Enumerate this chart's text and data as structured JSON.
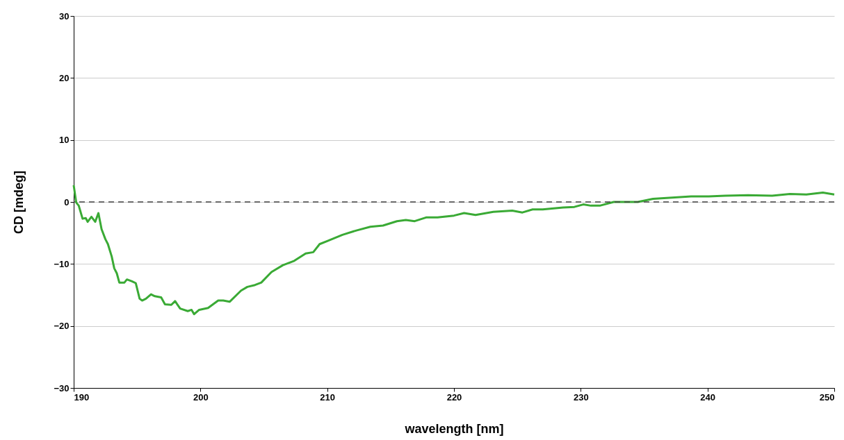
{
  "chart_data": {
    "type": "line",
    "xlabel": "wavelength [nm]",
    "ylabel": "CD [mdeg]",
    "x": [
      190.0,
      190.2,
      190.4,
      190.7,
      190.95,
      191.1,
      191.4,
      191.7,
      191.95,
      192.2,
      192.5,
      192.7,
      193.0,
      193.2,
      193.4,
      193.6,
      194.0,
      194.2,
      194.6,
      194.9,
      195.2,
      195.4,
      195.7,
      196.1,
      196.4,
      196.9,
      197.2,
      197.7,
      198.0,
      198.4,
      199.0,
      199.3,
      199.5,
      199.9,
      200.6,
      201.4,
      201.8,
      202.3,
      203.2,
      203.7,
      204.3,
      204.8,
      205.6,
      206.5,
      207.4,
      208.3,
      208.9,
      209.4,
      210.0,
      211.2,
      212.3,
      213.4,
      214.4,
      215.5,
      216.2,
      216.9,
      217.8,
      218.7,
      220.0,
      220.8,
      221.7,
      223.1,
      224.6,
      225.4,
      226.2,
      227.0,
      228.6,
      229.5,
      230.2,
      230.8,
      231.5,
      232.6,
      234.5,
      235.7,
      237.2,
      238.7,
      240.1,
      241.4,
      243.2,
      245.1,
      246.5,
      247.8,
      249.1,
      250.0
    ],
    "series": [
      {
        "color": "#3aaa35",
        "values": [
          2.7,
          -0.1,
          -0.6,
          -2.7,
          -2.6,
          -3.2,
          -2.4,
          -3.2,
          -1.8,
          -4.4,
          -6.0,
          -6.8,
          -8.8,
          -10.7,
          -11.5,
          -13.0,
          -13.0,
          -12.5,
          -12.8,
          -13.1,
          -15.6,
          -15.9,
          -15.6,
          -14.9,
          -15.2,
          -15.4,
          -16.5,
          -16.6,
          -16.0,
          -17.2,
          -17.6,
          -17.4,
          -18.1,
          -17.4,
          -17.1,
          -15.9,
          -15.9,
          -16.1,
          -14.3,
          -13.7,
          -13.4,
          -13.0,
          -11.3,
          -10.2,
          -9.5,
          -8.3,
          -8.1,
          -6.8,
          -6.3,
          -5.3,
          -4.6,
          -4.0,
          -3.8,
          -3.1,
          -2.9,
          -3.1,
          -2.5,
          -2.5,
          -2.2,
          -1.8,
          -2.1,
          -1.6,
          -1.4,
          -1.7,
          -1.2,
          -1.2,
          -0.9,
          -0.8,
          -0.4,
          -0.6,
          -0.6,
          0.0,
          0.0,
          0.5,
          0.7,
          0.9,
          0.9,
          1.0,
          1.1,
          1.0,
          1.3,
          1.2,
          1.5,
          1.2
        ]
      }
    ],
    "xlim": [
      190,
      250
    ],
    "xticks": [
      190,
      200,
      210,
      220,
      230,
      240,
      250
    ],
    "ylim": [
      -30,
      30
    ],
    "yticks": [
      -30,
      -20,
      -10,
      0,
      10,
      20,
      30
    ],
    "grid": "y",
    "marker": "none",
    "line_style": "solid",
    "ref_lines": [
      {
        "axis": "y",
        "value": 0,
        "color": "#404040",
        "line_style": "dashed"
      }
    ]
  }
}
